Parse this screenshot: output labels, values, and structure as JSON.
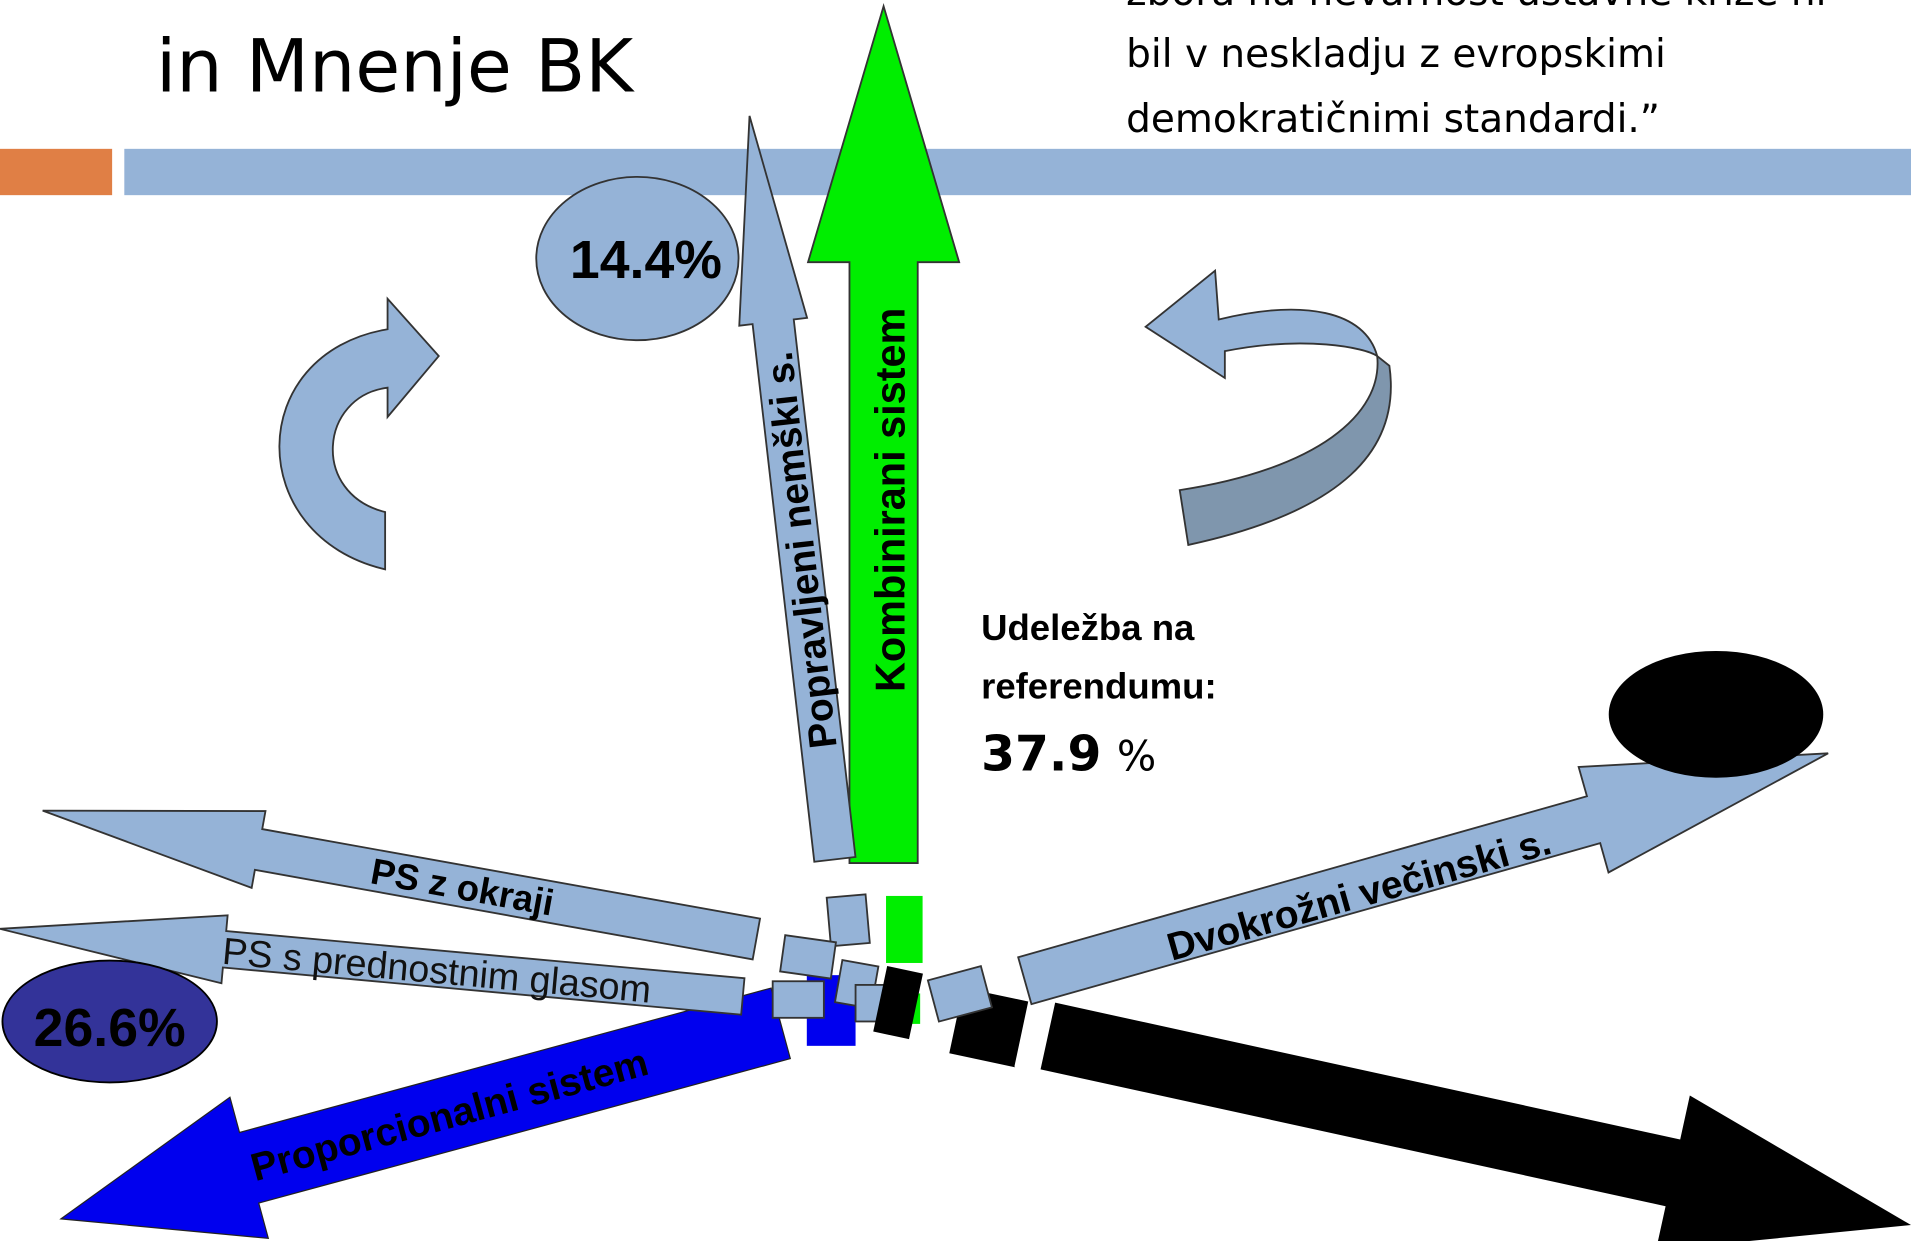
{
  "header": {
    "title": "in Mnenje BK"
  },
  "quote": {
    "lines": [
      "zbora na nevarnost ustavne krize ni",
      "bil v neskladju z evropskimi",
      "demokratičnimi standardi.”"
    ]
  },
  "arrows": {
    "kombinirani": "Kombinirani sistem",
    "popravljeni": "Popravljeni nemški s.",
    "ps_okraji": "PS z okraji",
    "ps_glas": "PS s prednostnim glasom",
    "proporcionalni": "Proporcionalni sistem",
    "dvokrozni": "Dvokrožni večinski s."
  },
  "badges": {
    "left_top": "14.4%",
    "left_bottom": "26.6%"
  },
  "turnout": {
    "line1": "Udeležba na",
    "line2": "referendumu:",
    "value": "37.9",
    "unit": "%"
  }
}
